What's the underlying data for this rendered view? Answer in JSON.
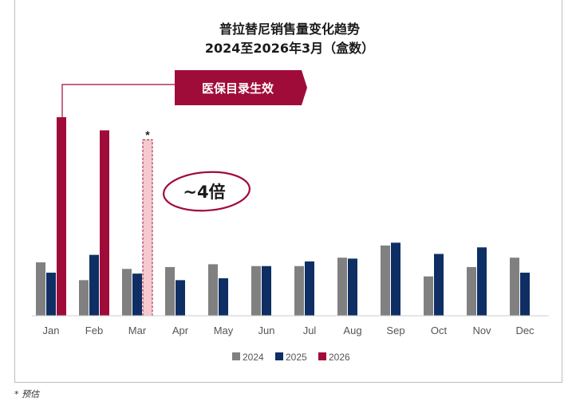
{
  "chart_data": {
    "type": "bar",
    "title": "普拉替尼销售量变化趋势",
    "subtitle": "2024至2026年3月（盒数）",
    "categories": [
      "Jan",
      "Feb",
      "Mar",
      "Apr",
      "May",
      "Jun",
      "Jul",
      "Aug",
      "Sep",
      "Oct",
      "Nov",
      "Dec"
    ],
    "series": [
      {
        "name": "2024",
        "color": "#808080",
        "values": [
          57,
          38,
          50,
          52,
          55,
          53,
          53,
          62,
          75,
          42,
          52,
          62
        ]
      },
      {
        "name": "2025",
        "color": "#0f2f64",
        "values": [
          46,
          65,
          45,
          38,
          40,
          53,
          58,
          61,
          78,
          66,
          73,
          46
        ]
      },
      {
        "name": "2026",
        "color": "#a00c3a",
        "values": [
          212,
          198,
          188,
          null,
          null,
          null,
          null,
          null,
          null,
          null,
          null,
          null
        ],
        "estimated": [
          false,
          false,
          true,
          false,
          false,
          false,
          false,
          false,
          false,
          false,
          false,
          false
        ]
      }
    ],
    "ylim": [
      0,
      235
    ],
    "xlabel": "",
    "ylabel": "",
    "grid": false,
    "legend_position": "bottom-center"
  },
  "annotations": {
    "callout_label": "医保目录生效",
    "growth_label": "~4倍",
    "estimate_marker": "*"
  },
  "footnote": "* 预估"
}
